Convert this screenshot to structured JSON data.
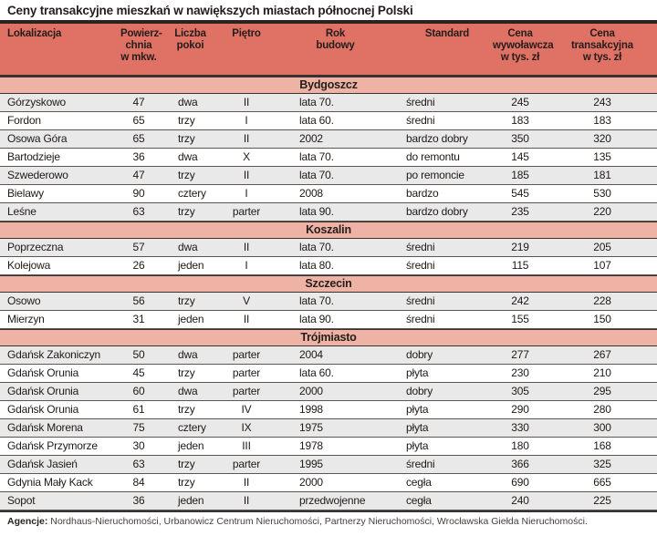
{
  "chart_data": {
    "type": "table",
    "title": "Ceny transakcyjne mieszkań w nawiększych miastach północnej Polski",
    "columns": [
      {
        "label": "Lokalizacja",
        "display": "Lokalizacja"
      },
      {
        "label": "Powierzchnia w mkw.",
        "display": "Powierz-\nchnia\nw mkw."
      },
      {
        "label": "Liczba pokoi",
        "display": "Liczba\npokoi"
      },
      {
        "label": "Piętro",
        "display": "Piętro"
      },
      {
        "label": "Rok budowy",
        "display": "Rok\nbudowy"
      },
      {
        "label": "Standard",
        "display": "Standard"
      },
      {
        "label": "Cena wywoławcza w tys. zł",
        "display": "Cena\nwywoławcza\nw tys. zł"
      },
      {
        "label": "Cena transakcyjna w tys. zł",
        "display": "Cena\ntransakcyjna\nw tys. zł"
      }
    ],
    "sections": [
      {
        "name": "Bydgoszcz",
        "rows": [
          [
            "Górzyskowo",
            "47",
            "dwa",
            "II",
            "lata 70.",
            "średni",
            "245",
            "243"
          ],
          [
            "Fordon",
            "65",
            "trzy",
            "I",
            "lata 60.",
            "średni",
            "183",
            "183"
          ],
          [
            "Osowa Góra",
            "65",
            "trzy",
            "II",
            "2002",
            "bardzo dobry",
            "350",
            "320"
          ],
          [
            "Bartodzieje",
            "36",
            "dwa",
            "X",
            "lata 70.",
            "do remontu",
            "145",
            "135"
          ],
          [
            "Szwederowo",
            "47",
            "trzy",
            "II",
            "lata 70.",
            "po remoncie",
            "185",
            "181"
          ],
          [
            "Bielawy",
            "90",
            "cztery",
            "I",
            "2008",
            "bardzo",
            "545",
            "530"
          ],
          [
            "Leśne",
            "63",
            "trzy",
            "parter",
            "lata 90.",
            "bardzo dobry",
            "235",
            "220"
          ]
        ]
      },
      {
        "name": "Koszalin",
        "rows": [
          [
            "Poprzeczna",
            "57",
            "dwa",
            "II",
            "lata 70.",
            "średni",
            "219",
            "205"
          ],
          [
            "Kolejowa",
            "26",
            "jeden",
            "I",
            "lata 80.",
            "średni",
            "115",
            "107"
          ]
        ]
      },
      {
        "name": "Szczecin",
        "rows": [
          [
            "Osowo",
            "56",
            "trzy",
            "V",
            "lata 70.",
            "średni",
            "242",
            "228"
          ],
          [
            "Mierzyn",
            "31",
            "jeden",
            "II",
            "lata 90.",
            "średni",
            "155",
            "150"
          ]
        ]
      },
      {
        "name": "Trójmiasto",
        "rows": [
          [
            "Gdańsk Zakoniczyn",
            "50",
            "dwa",
            "parter",
            "2004",
            "dobry",
            "277",
            "267"
          ],
          [
            "Gdańsk Orunia",
            "45",
            "trzy",
            "parter",
            "lata 60.",
            "płyta",
            "230",
            "210"
          ],
          [
            "Gdańsk Orunia",
            "60",
            "dwa",
            "parter",
            "2000",
            "dobry",
            "305",
            "295"
          ],
          [
            "Gdańsk Orunia",
            "61",
            "trzy",
            "IV",
            "1998",
            "płyta",
            "290",
            "280"
          ],
          [
            "Gdańsk Morena",
            "75",
            "cztery",
            "IX",
            "1975",
            "płyta",
            "330",
            "300"
          ],
          [
            "Gdańsk Przymorze",
            "30",
            "jeden",
            "III",
            "1978",
            "płyta",
            "180",
            "168"
          ],
          [
            "Gdańsk Jasień",
            "63",
            "trzy",
            "parter",
            "1995",
            "średni",
            "366",
            "325"
          ],
          [
            "Gdynia Mały Kack",
            "84",
            "trzy",
            "II",
            "2000",
            "cegła",
            "690",
            "665"
          ],
          [
            "Sopot",
            "36",
            "jeden",
            "II",
            "przedwojenne",
            "cegła",
            "240",
            "225"
          ]
        ]
      }
    ],
    "footer": {
      "label": "Agencje:",
      "text": " Nordhaus-Nieruchomości, Urbanowicz Centrum Nieruchomości, Partnerzy Nieruchomości, Wrocławska Giełda Nieruchomości."
    },
    "colors": {
      "header-bg": "#df7265",
      "section-bg": "#eeb3a4",
      "stripe-bg": "#e9e9e9",
      "rule-dark": "#2c2220",
      "band-border": "#3a322e",
      "row-border": "#5e5652",
      "text-dark": "#1f1a18"
    }
  }
}
